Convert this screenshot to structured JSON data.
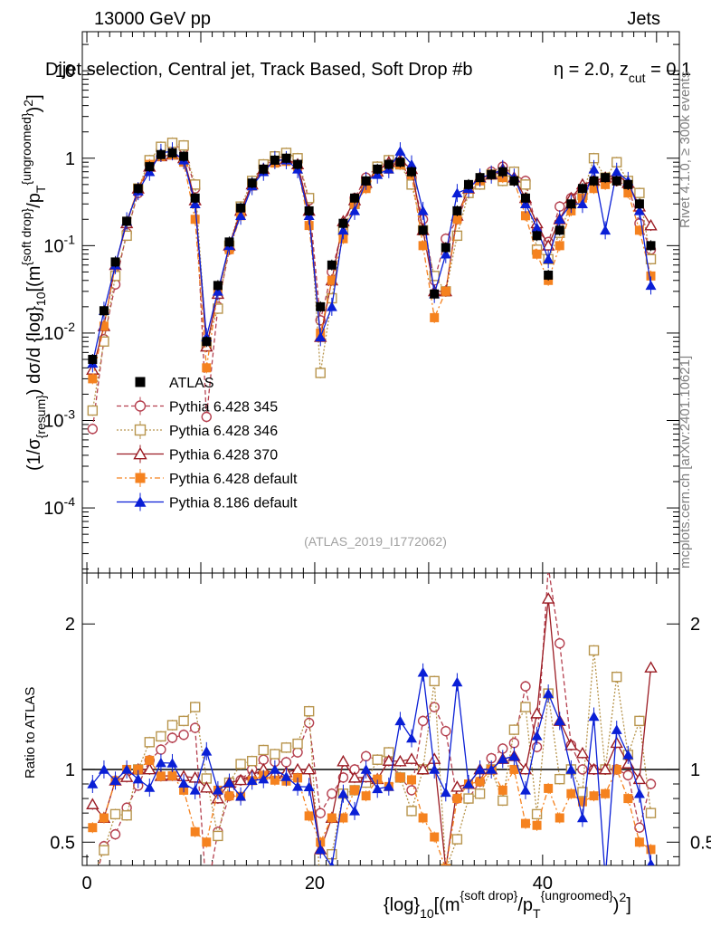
{
  "header": {
    "left": "13000 GeV pp",
    "right": "Jets",
    "title": "Dijet selection, Central jet, Track Based, Soft Drop #b",
    "title_tail_eta": "η = 2.0, z",
    "title_tail_sub": "cut",
    "title_tail_val": " = 0.1"
  },
  "side": {
    "rivet": "Rivet 4.1.0, ≥ 300k events",
    "mcplots": "mcplots.cern.ch [arXiv:2401.10621]"
  },
  "watermark": "(ATLAS_2019_I1772062)",
  "labels": {
    "ylabel_main": "(1/σ_{resum}) dσ/d {log}_{10}[(m^{soft drop}/p_T^{ungroomed})^2]",
    "ylabel_ratio": "Ratio to ATLAS",
    "xlabel": "{log}_{10}[(m^{soft drop}/p_T^{ungroomed})^2]"
  },
  "chart_data": {
    "type": "scatter",
    "title": "Dijet selection, Central jet, Track Based, Soft Drop #b η = 2.0, z_cut = 0.1",
    "xlabel": "{log}_{10}[(m^{soft drop}/p_T^{ungroomed})^2]",
    "ylabel": "(1/σ_{resum}) dσ/d {log}_{10}[(m^{soft drop}/p_T^{ungroomed})^2]",
    "xlim": [
      -0.4,
      52
    ],
    "ylim_main": [
      1.8e-05,
      28
    ],
    "yscale_main": "log",
    "ylim_ratio": [
      0.34,
      2.35
    ],
    "x_ticks": [
      0,
      20,
      40
    ],
    "y_ticks_main": [
      "10^-4",
      "10^-3",
      "10^-2",
      "10^-1",
      "1",
      "10"
    ],
    "y_ticks_ratio": [
      "0.5",
      "1",
      "2"
    ],
    "legend_position": "middle-left",
    "x": [
      0.5,
      1.5,
      2.5,
      3.5,
      4.5,
      5.5,
      6.5,
      7.5,
      8.5,
      9.5,
      10.5,
      11.5,
      12.5,
      13.5,
      14.5,
      15.5,
      16.5,
      17.5,
      18.5,
      19.5,
      20.5,
      21.5,
      22.5,
      23.5,
      24.5,
      25.5,
      26.5,
      27.5,
      28.5,
      29.5,
      30.5,
      31.5,
      32.5,
      33.5,
      34.5,
      35.5,
      36.5,
      37.5,
      38.5,
      39.5,
      40.5,
      41.5,
      42.5,
      43.5,
      44.5,
      45.5,
      46.5,
      47.5,
      48.5,
      49.5
    ],
    "series": [
      {
        "name": "ATLAS",
        "color": "#000000",
        "marker": "square-filled",
        "line": "none",
        "values": [
          0.005,
          0.018,
          0.065,
          0.19,
          0.45,
          0.8,
          1.1,
          1.15,
          1.05,
          0.35,
          0.008,
          0.035,
          0.11,
          0.27,
          0.52,
          0.75,
          0.95,
          1.0,
          0.85,
          0.25,
          0.02,
          0.06,
          0.18,
          0.35,
          0.55,
          0.75,
          0.85,
          0.9,
          0.7,
          0.15,
          0.028,
          0.095,
          0.25,
          0.5,
          0.6,
          0.65,
          0.7,
          0.55,
          0.35,
          0.13,
          0.046,
          0.15,
          0.3,
          0.45,
          0.55,
          0.6,
          0.55,
          0.5,
          0.3,
          0.1
        ]
      },
      {
        "name": "Pythia 6.428 345",
        "color": "#b5404f",
        "marker": "circle-open",
        "line": "dashed",
        "values": [
          0.0008,
          0.0085,
          0.036,
          0.14,
          0.4,
          0.85,
          1.25,
          1.4,
          1.3,
          0.45,
          0.0011,
          0.02,
          0.09,
          0.25,
          0.52,
          0.8,
          1.0,
          1.05,
          0.95,
          0.33,
          0.014,
          0.05,
          0.17,
          0.35,
          0.6,
          0.8,
          0.9,
          0.85,
          0.6,
          0.2,
          0.04,
          0.12,
          0.2,
          0.4,
          0.55,
          0.7,
          0.8,
          0.65,
          0.55,
          0.15,
          0.11,
          0.28,
          0.35,
          0.45,
          0.55,
          0.6,
          0.55,
          0.48,
          0.18,
          0.09
        ]
      },
      {
        "name": "Pythia 6.428 346",
        "color": "#b8954d",
        "marker": "square-open",
        "line": "dotted",
        "values": [
          0.0013,
          0.008,
          0.045,
          0.13,
          0.45,
          0.95,
          1.35,
          1.5,
          1.4,
          0.5,
          0.0075,
          0.019,
          0.1,
          0.28,
          0.55,
          0.85,
          1.05,
          1.15,
          1.0,
          0.35,
          0.0035,
          0.025,
          0.15,
          0.3,
          0.5,
          0.8,
          0.95,
          0.85,
          0.5,
          0.15,
          0.045,
          0.03,
          0.13,
          0.4,
          0.5,
          0.65,
          0.55,
          0.7,
          0.5,
          0.09,
          0.07,
          0.14,
          0.3,
          0.38,
          1.0,
          0.6,
          0.9,
          0.55,
          0.4,
          0.07
        ]
      },
      {
        "name": "Pythia 6.428 370",
        "color": "#9b1c24",
        "marker": "triangle-open",
        "line": "solid",
        "values": [
          0.0038,
          0.012,
          0.06,
          0.18,
          0.45,
          0.8,
          1.05,
          1.1,
          1.0,
          0.33,
          0.007,
          0.028,
          0.1,
          0.25,
          0.5,
          0.75,
          0.92,
          0.98,
          0.85,
          0.25,
          0.009,
          0.04,
          0.19,
          0.33,
          0.52,
          0.7,
          0.9,
          0.95,
          0.75,
          0.15,
          0.03,
          0.03,
          0.22,
          0.45,
          0.6,
          0.65,
          0.75,
          0.6,
          0.35,
          0.18,
          0.1,
          0.2,
          0.35,
          0.5,
          0.55,
          0.6,
          0.65,
          0.52,
          0.28,
          0.17
        ]
      },
      {
        "name": "Pythia 6.428 default",
        "color": "#f5821f",
        "marker": "square-filled",
        "line": "dashdot",
        "values": [
          0.003,
          0.012,
          0.06,
          0.19,
          0.45,
          0.85,
          1.05,
          1.1,
          0.9,
          0.2,
          0.004,
          0.03,
          0.09,
          0.22,
          0.48,
          0.72,
          0.88,
          0.92,
          0.8,
          0.17,
          0.01,
          0.04,
          0.12,
          0.3,
          0.45,
          0.7,
          0.75,
          0.85,
          0.65,
          0.1,
          0.015,
          0.03,
          0.2,
          0.45,
          0.55,
          0.65,
          0.6,
          0.55,
          0.22,
          0.08,
          0.04,
          0.1,
          0.25,
          0.35,
          0.45,
          0.5,
          0.55,
          0.4,
          0.15,
          0.045
        ]
      },
      {
        "name": "Pythia 8.186 default",
        "color": "#0a1fd6",
        "marker": "triangle-filled",
        "line": "solid",
        "values": [
          0.0045,
          0.018,
          0.06,
          0.19,
          0.42,
          0.7,
          1.15,
          1.2,
          0.95,
          0.3,
          0.009,
          0.03,
          0.1,
          0.22,
          0.48,
          0.7,
          0.95,
          0.95,
          0.75,
          0.22,
          0.009,
          0.02,
          0.15,
          0.25,
          0.55,
          0.65,
          0.75,
          1.2,
          0.85,
          0.25,
          0.028,
          0.08,
          0.4,
          0.45,
          0.6,
          0.65,
          0.75,
          0.6,
          0.3,
          0.16,
          0.07,
          0.2,
          0.3,
          0.3,
          0.75,
          0.15,
          0.7,
          0.55,
          0.25,
          0.035
        ]
      }
    ]
  }
}
